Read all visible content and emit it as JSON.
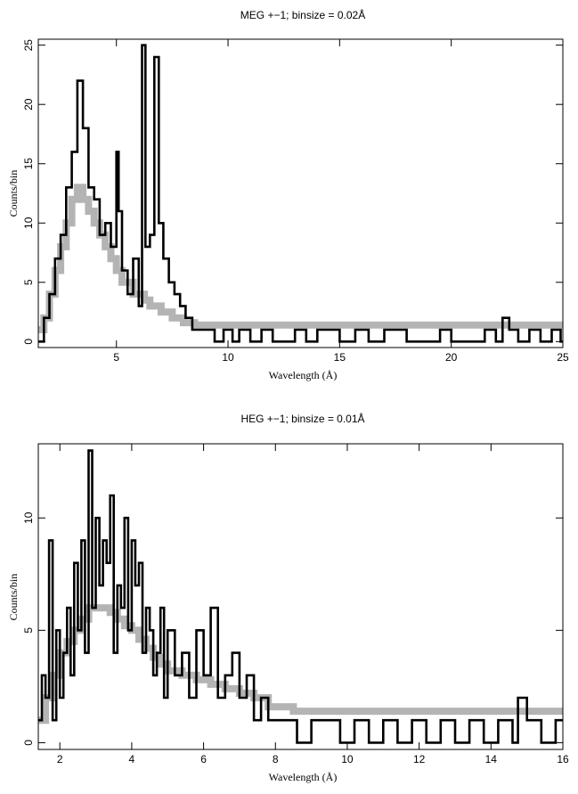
{
  "chart_data": [
    {
      "type": "line",
      "title": "MEG +−1; binsize = 0.02Å",
      "xlabel": "Wavelength (Å)",
      "ylabel": "Counts/bin",
      "xlim": [
        1.5,
        25
      ],
      "ylim": [
        -0.5,
        25.5
      ],
      "xticks": [
        5,
        10,
        15,
        20,
        25
      ],
      "yticks": [
        0,
        5,
        10,
        15,
        20,
        25
      ],
      "grid": false,
      "series": [
        {
          "style": "black-step",
          "x": [
            1.5,
            1.75,
            2.0,
            2.25,
            2.5,
            2.75,
            3.0,
            3.25,
            3.5,
            3.75,
            4.0,
            4.25,
            4.5,
            4.75,
            5.0,
            5.1,
            5.25,
            5.5,
            5.75,
            6.0,
            6.15,
            6.3,
            6.5,
            6.7,
            6.9,
            7.1,
            7.35,
            7.6,
            7.85,
            8.1,
            8.4,
            8.7,
            9.0,
            9.4,
            9.8,
            10.2,
            10.5,
            11.0,
            11.5,
            12.0,
            13.0,
            13.5,
            14.0,
            15.0,
            15.7,
            16.3,
            17.0,
            18.0,
            19.5,
            20.0,
            20.5,
            21.0,
            21.5,
            22.0,
            22.3,
            22.6,
            23.0,
            23.5,
            24.0,
            24.5,
            24.9
          ],
          "values": [
            0,
            2,
            4,
            7,
            9,
            13,
            16,
            22,
            18,
            13,
            12,
            9,
            10,
            8,
            16,
            11,
            6,
            4,
            7,
            3,
            25,
            8,
            9,
            24,
            10,
            7,
            5,
            4,
            3,
            2,
            1,
            1,
            1,
            0,
            1,
            0,
            1,
            0,
            1,
            0,
            1,
            0,
            1,
            0,
            1,
            0,
            1,
            0,
            1,
            0,
            0,
            0,
            1,
            0,
            2,
            1,
            0,
            1,
            0,
            1,
            0
          ]
        },
        {
          "style": "gray-model",
          "x": [
            1.5,
            1.75,
            2.0,
            2.25,
            2.5,
            2.75,
            3.0,
            3.25,
            3.5,
            3.75,
            4.0,
            4.25,
            4.5,
            4.75,
            5.0,
            5.25,
            5.5,
            5.75,
            6.0,
            6.25,
            6.5,
            6.75,
            7.0,
            7.5,
            8.0,
            8.5,
            9.0,
            25
          ],
          "values": [
            1,
            2,
            4,
            6,
            8,
            10,
            12,
            13,
            12,
            11,
            10,
            9,
            8,
            7,
            6,
            5,
            5,
            4,
            4,
            3.5,
            3,
            3,
            2.5,
            2,
            1.6,
            1.4,
            1.4,
            1.4
          ]
        }
      ]
    },
    {
      "type": "line",
      "title": "HEG +−1; binsize = 0.01Å",
      "xlabel": "Wavelength (Å)",
      "ylabel": "Counts/bin",
      "xlim": [
        1.4,
        16
      ],
      "ylim": [
        -0.3,
        13.3
      ],
      "xticks": [
        2,
        4,
        6,
        8,
        10,
        12,
        14,
        16
      ],
      "yticks": [
        0,
        5,
        10
      ],
      "grid": false,
      "series": [
        {
          "style": "black-step",
          "x": [
            1.4,
            1.5,
            1.6,
            1.7,
            1.8,
            1.9,
            2.0,
            2.1,
            2.2,
            2.3,
            2.4,
            2.5,
            2.6,
            2.7,
            2.8,
            2.9,
            3.0,
            3.1,
            3.2,
            3.3,
            3.4,
            3.5,
            3.6,
            3.7,
            3.8,
            3.9,
            4.0,
            4.1,
            4.2,
            4.3,
            4.4,
            4.5,
            4.6,
            4.7,
            4.8,
            4.9,
            5.0,
            5.2,
            5.4,
            5.6,
            5.8,
            6.0,
            6.2,
            6.4,
            6.6,
            6.8,
            7.0,
            7.2,
            7.4,
            7.6,
            7.8,
            8.0,
            8.3,
            8.6,
            9.0,
            9.4,
            9.8,
            10.2,
            10.6,
            11.0,
            11.4,
            11.8,
            12.2,
            12.6,
            13.0,
            13.4,
            13.8,
            14.2,
            14.6,
            14.75,
            15.0,
            15.4,
            15.8
          ],
          "values": [
            1,
            3,
            2,
            9,
            1,
            5,
            2,
            4,
            6,
            3,
            8,
            5,
            9,
            4,
            13,
            6,
            10,
            7,
            9,
            8,
            11,
            4,
            7,
            6,
            10,
            5,
            9,
            7,
            8,
            4,
            6,
            5,
            3,
            4,
            6,
            2,
            5,
            3,
            4,
            2,
            5,
            3,
            6,
            2,
            3,
            4,
            2,
            3,
            1,
            2,
            1,
            1,
            1,
            0,
            1,
            1,
            0,
            1,
            0,
            1,
            0,
            1,
            0,
            1,
            0,
            1,
            0,
            1,
            0,
            2,
            1,
            0,
            1
          ]
        },
        {
          "style": "gray-model",
          "x": [
            1.4,
            1.6,
            1.8,
            2.0,
            2.2,
            2.4,
            2.6,
            2.8,
            3.0,
            3.2,
            3.4,
            3.6,
            3.8,
            4.0,
            4.2,
            4.4,
            4.6,
            4.8,
            5.0,
            5.4,
            5.8,
            6.2,
            6.6,
            7.0,
            7.4,
            7.8,
            8.5,
            16
          ],
          "values": [
            1,
            2,
            3,
            4,
            4.5,
            5,
            5.5,
            6,
            6,
            6,
            5.8,
            5.5,
            5.2,
            5,
            4.6,
            4.2,
            3.8,
            3.5,
            3.2,
            3,
            2.8,
            2.6,
            2.4,
            2.2,
            2,
            1.6,
            1.4,
            1.4
          ]
        }
      ]
    }
  ]
}
